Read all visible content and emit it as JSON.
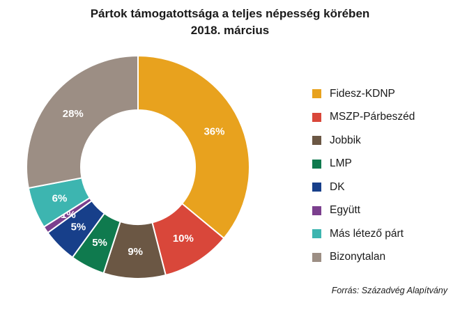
{
  "chart_data": {
    "type": "pie",
    "title": "Pártok támogatottsága a teljes népesség körében",
    "subtitle": "2018. március",
    "categories": [
      "Fidesz-KDNP",
      "MSZP-Párbeszéd",
      "Jobbik",
      "LMP",
      "DK",
      "Együtt",
      "Más létező párt",
      "Bizonytalan"
    ],
    "values": [
      36,
      10,
      9,
      5,
      5,
      1,
      6,
      28
    ],
    "data_labels": [
      "36%",
      "10%",
      "9%",
      "5%",
      "5%",
      "1%",
      "6%",
      "28%"
    ],
    "colors": [
      "#E8A21E",
      "#D9473A",
      "#6B5744",
      "#0F7A4E",
      "#173F8A",
      "#7B3F8E",
      "#3DB5B0",
      "#9C8E84"
    ],
    "donut": true,
    "legend_position": "right",
    "source": "Forrás: Századvég Alapítvány"
  }
}
